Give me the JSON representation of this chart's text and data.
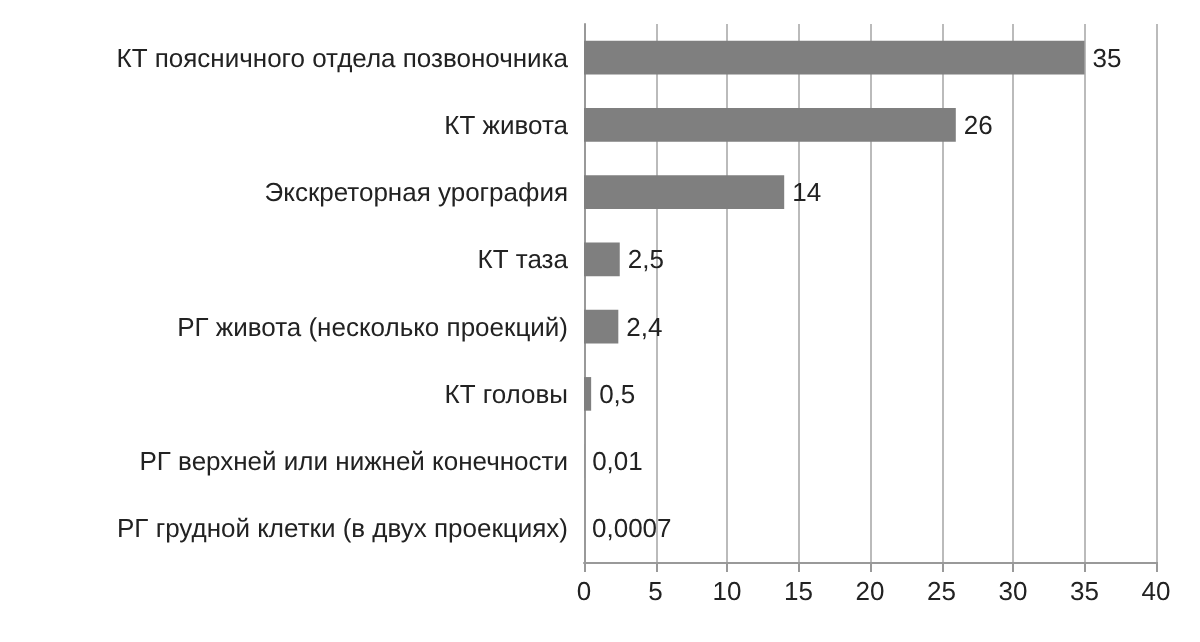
{
  "chart_data": {
    "type": "bar",
    "orientation": "horizontal",
    "categories": [
      "КТ поясничного отдела позвоночника",
      "КТ живота",
      "Экскреторная урография",
      "КТ таза",
      "РГ живота (несколько проекций)",
      "КТ головы",
      "РГ верхней или нижней конечности",
      "РГ грудной клетки (в двух проекциях)"
    ],
    "values": [
      35,
      26,
      14,
      2.5,
      2.4,
      0.5,
      0.01,
      0.0007
    ],
    "value_labels": [
      "35",
      "26",
      "14",
      "2,5",
      "2,4",
      "0,5",
      "0,01",
      "0,0007"
    ],
    "color": "#7f7f7f",
    "xlim": [
      0,
      40
    ],
    "xticks": [
      0,
      5,
      10,
      15,
      20,
      25,
      30,
      35,
      40
    ],
    "grid": "x"
  }
}
